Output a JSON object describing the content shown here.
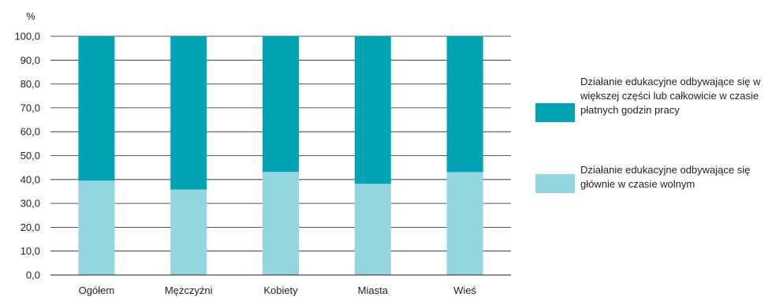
{
  "chart_data": {
    "type": "bar",
    "stacked": true,
    "y_unit_label": "%",
    "categories": [
      "Ogółem",
      "Mężczyźni",
      "Kobiety",
      "Miasta",
      "Wieś"
    ],
    "series": [
      {
        "name": "Działanie edukacyjne odbywające się głównie w czasie wolnym",
        "color": "#93d6df",
        "values": [
          39.5,
          35.8,
          43.2,
          38.2,
          43.1
        ]
      },
      {
        "name": "Działanie edukacyjne odbywające się w większej części lub całkowicie w czasie płatnych godzin pracy",
        "color": "#00a4b4",
        "values": [
          60.5,
          64.2,
          56.8,
          61.8,
          56.9
        ]
      }
    ],
    "ylim": [
      0,
      100
    ],
    "yticks": [
      "0,0",
      "10,0",
      "20,0",
      "30,0",
      "40,0",
      "50,0",
      "60,0",
      "70,0",
      "80,0",
      "90,0",
      "100,0"
    ],
    "grid": true,
    "legend_position": "right"
  },
  "legend": {
    "items": [
      {
        "label": "Działanie edukacyjne odbywające się w większej części lub całkowicie w czasie płatnych godzin pracy",
        "color": "#00a4b4"
      },
      {
        "label": "Działanie edukacyjne odbywające się głównie w czasie wolnym",
        "color": "#93d6df"
      }
    ]
  }
}
